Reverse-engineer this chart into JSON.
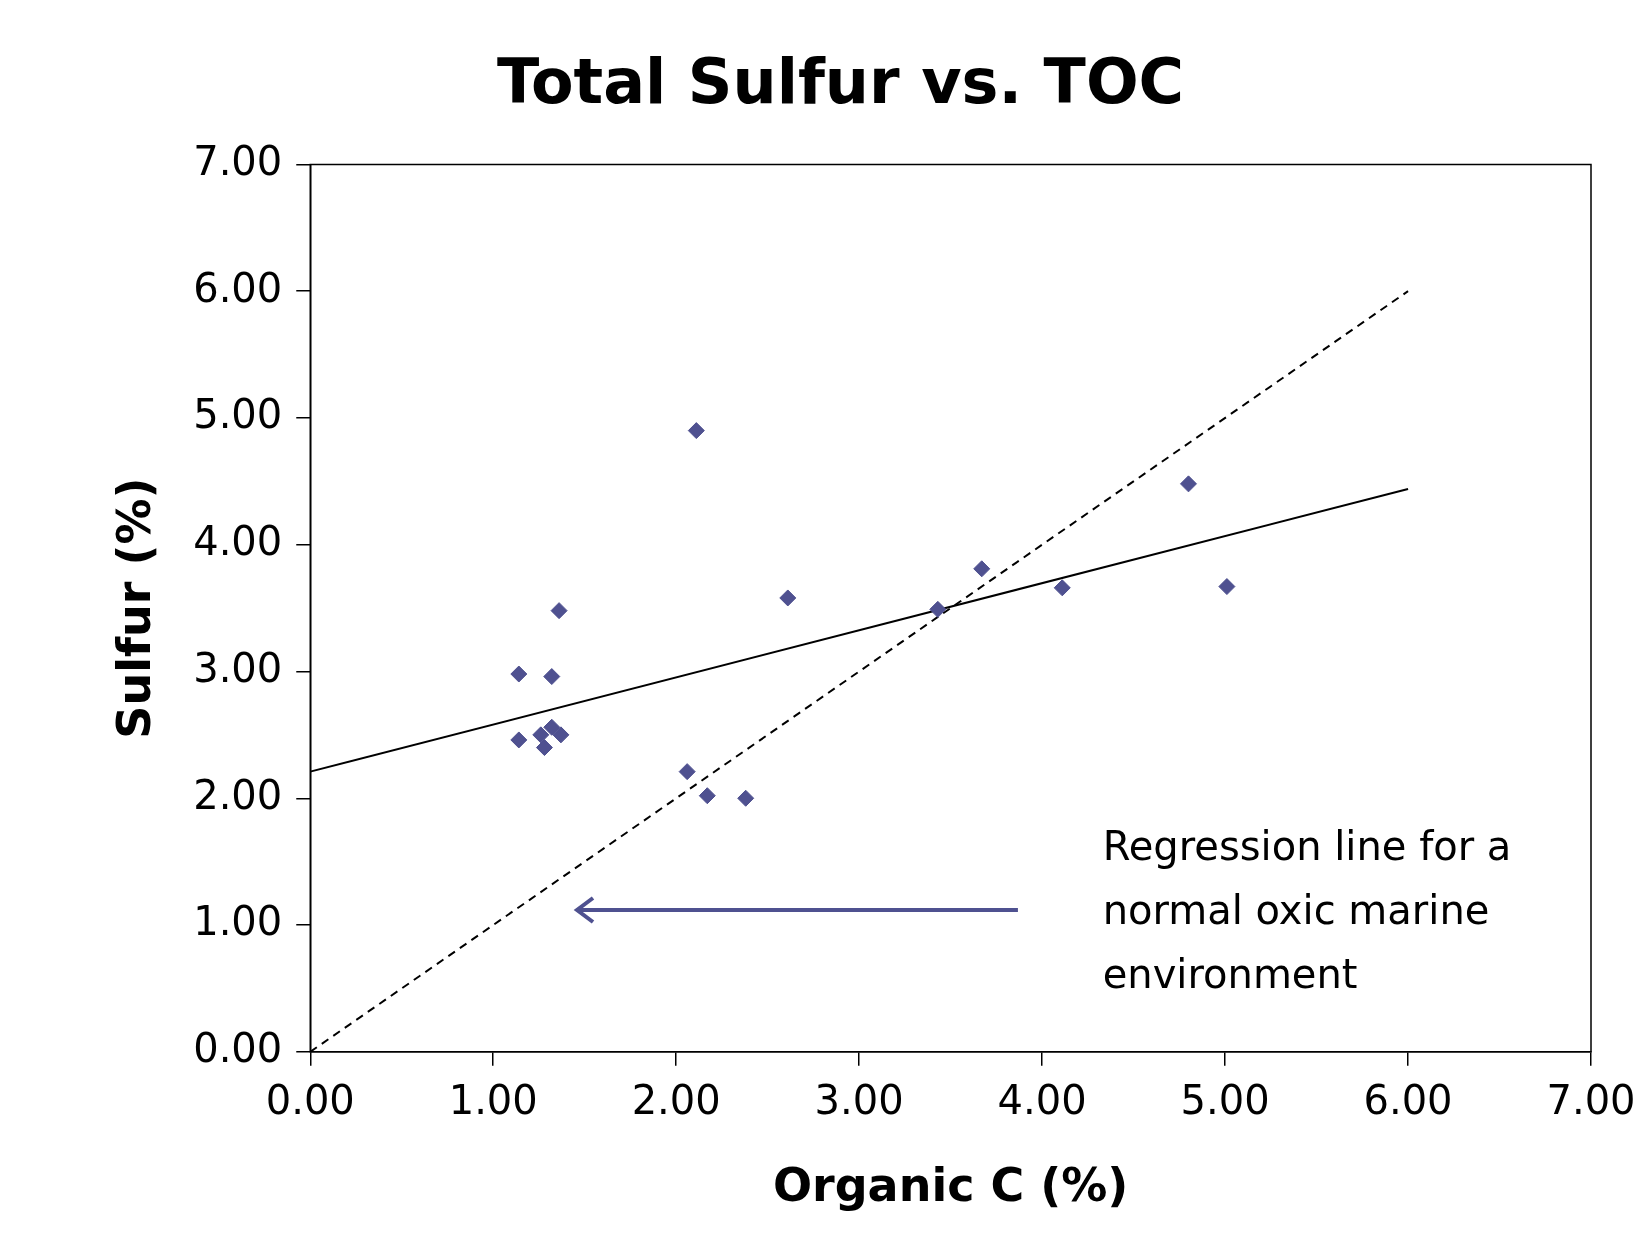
{
  "chart_data": {
    "type": "scatter",
    "title": "Total Sulfur vs. TOC",
    "xlabel": "Organic C (%)",
    "ylabel": "Sulfur (%)",
    "xlim": [
      0,
      7
    ],
    "xticks": [
      {
        "value": 0,
        "label": "0.00"
      },
      {
        "value": 1,
        "label": "1.00"
      },
      {
        "value": 2,
        "label": "2.00"
      },
      {
        "value": 3,
        "label": "3.00"
      },
      {
        "value": 4,
        "label": "4.00"
      },
      {
        "value": 5,
        "label": "5.00"
      },
      {
        "value": 6,
        "label": "6.00"
      },
      {
        "value": 7,
        "label": "7.00"
      }
    ],
    "ylim": [
      0,
      7
    ],
    "yticks": [
      {
        "value": 0,
        "label": "0.00"
      },
      {
        "value": 1,
        "label": "1.00"
      },
      {
        "value": 2,
        "label": "2.00"
      },
      {
        "value": 3,
        "label": "3.00"
      },
      {
        "value": 4,
        "label": "4.00"
      },
      {
        "value": 5,
        "label": "5.00"
      },
      {
        "value": 6,
        "label": "6.00"
      },
      {
        "value": 7,
        "label": "7.00"
      }
    ],
    "grid": false,
    "legend": false,
    "annotations": [
      "Regression line for a normal oxic marine environment"
    ],
    "series": [
      {
        "type": "scatter",
        "marker": "diamond",
        "color": "#4f5190",
        "x": [
          1.14,
          1.14,
          1.32,
          1.36,
          1.28,
          1.26,
          1.32,
          1.37,
          2.11,
          2.06,
          2.17,
          2.38,
          2.61,
          3.43,
          3.67,
          4.11,
          4.8,
          5.01
        ],
        "values": [
          2.98,
          2.46,
          2.96,
          3.48,
          2.4,
          2.5,
          2.56,
          2.5,
          4.9,
          2.21,
          2.02,
          2.0,
          3.58,
          3.49,
          3.81,
          3.66,
          4.48,
          3.67
        ]
      },
      {
        "type": "line",
        "marker": "none",
        "line_style": "dashed",
        "color": "#000000",
        "x": [
          0,
          6
        ],
        "values": [
          0,
          6
        ]
      },
      {
        "type": "line",
        "marker": "none",
        "line_style": "solid",
        "color": "#000000",
        "x": [
          0,
          6
        ],
        "values": [
          2.21,
          4.44
        ]
      }
    ]
  }
}
